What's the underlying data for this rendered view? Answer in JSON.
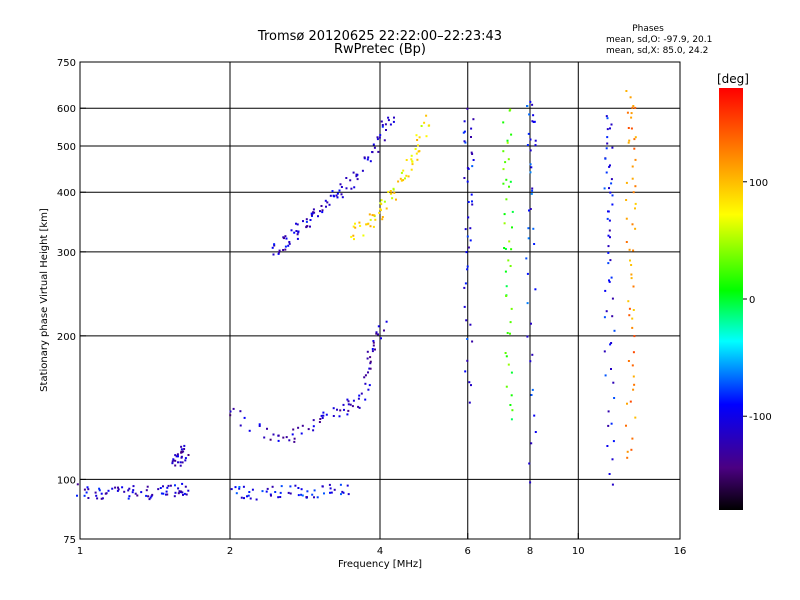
{
  "chart_data": {
    "type": "scatter",
    "title": "Tromsø 20120625 22:22:00–22:23:43",
    "subtitle": "RwPretec (Bp)",
    "xlabel": "Frequency [MHz]",
    "ylabel": "Stationary phase Virtual Height [km]",
    "x_scale": "log",
    "y_scale": "log",
    "xlim": [
      1,
      16
    ],
    "ylim": [
      75,
      750
    ],
    "x_ticks": [
      1,
      2,
      4,
      6,
      8,
      10,
      16
    ],
    "x_tick_labels": [
      "1",
      "2",
      "4",
      "6",
      "8",
      "10",
      "16"
    ],
    "y_ticks": [
      75,
      100,
      200,
      300,
      400,
      500,
      600,
      750
    ],
    "y_tick_labels": [
      "75",
      "100",
      "200",
      "300",
      "400",
      "500",
      "600",
      "750"
    ],
    "grid": true,
    "phase_stats": {
      "heading": "Phases",
      "line_o": "mean, sd,O:  -97.9, 20.1",
      "line_x": "mean, sd,X:  85.0, 24.2"
    },
    "colorbar": {
      "label": "[deg]",
      "range": [
        -180,
        180
      ],
      "ticks": [
        100,
        0,
        -100
      ],
      "tick_labels": [
        "100",
        "0",
        "-100"
      ],
      "colormap": "rainbow"
    },
    "traces": [
      {
        "points": [
          [
            1.0,
            95
          ],
          [
            1.1,
            94
          ],
          [
            1.25,
            94
          ],
          [
            1.4,
            94.5
          ],
          [
            1.55,
            95
          ],
          [
            1.62,
            96
          ]
        ],
        "phase": -110
      },
      {
        "points": [
          [
            2.0,
            94
          ],
          [
            2.3,
            94
          ],
          [
            2.7,
            94.5
          ],
          [
            3.0,
            95
          ],
          [
            3.5,
            95
          ]
        ],
        "phase": -95
      },
      {
        "points": [
          [
            1.55,
            110
          ],
          [
            1.58,
            112
          ],
          [
            1.62,
            115
          ]
        ],
        "phase": -120
      },
      {
        "points": [
          [
            2.0,
            140
          ],
          [
            2.5,
            120
          ],
          [
            2.9,
            132
          ],
          [
            3.3,
            140
          ],
          [
            3.7,
            150
          ],
          [
            3.85,
            185
          ],
          [
            4.05,
            215
          ]
        ],
        "phase": -120
      },
      {
        "points": [
          [
            2.45,
            300
          ],
          [
            2.6,
            320
          ],
          [
            2.8,
            345
          ],
          [
            3.0,
            365
          ],
          [
            3.3,
            400
          ],
          [
            3.6,
            440
          ],
          [
            4.0,
            520
          ],
          [
            4.2,
            590
          ]
        ],
        "phase": -110
      },
      {
        "points": [
          [
            3.5,
            330
          ],
          [
            3.8,
            350
          ],
          [
            4.1,
            380
          ],
          [
            4.4,
            430
          ],
          [
            4.7,
            490
          ],
          [
            4.95,
            580
          ]
        ],
        "phase": 80
      },
      {
        "points": [
          [
            6.0,
            150
          ],
          [
            6.0,
            300
          ],
          [
            6.0,
            450
          ],
          [
            6.0,
            600
          ]
        ],
        "phase": -100
      },
      {
        "points": [
          [
            7.2,
            130
          ],
          [
            7.2,
            250
          ],
          [
            7.2,
            400
          ],
          [
            7.2,
            620
          ]
        ],
        "phase": 20
      },
      {
        "points": [
          [
            8.0,
            100
          ],
          [
            8.0,
            300
          ],
          [
            8.0,
            500
          ],
          [
            8.0,
            640
          ]
        ],
        "phase": -90
      },
      {
        "points": [
          [
            11.5,
            100
          ],
          [
            11.5,
            200
          ],
          [
            11.5,
            320
          ],
          [
            11.5,
            450
          ],
          [
            11.5,
            600
          ]
        ],
        "phase": -100
      },
      {
        "points": [
          [
            12.7,
            110
          ],
          [
            12.7,
            200
          ],
          [
            12.7,
            320
          ],
          [
            12.7,
            500
          ],
          [
            12.7,
            660
          ]
        ],
        "phase": 120
      }
    ]
  }
}
